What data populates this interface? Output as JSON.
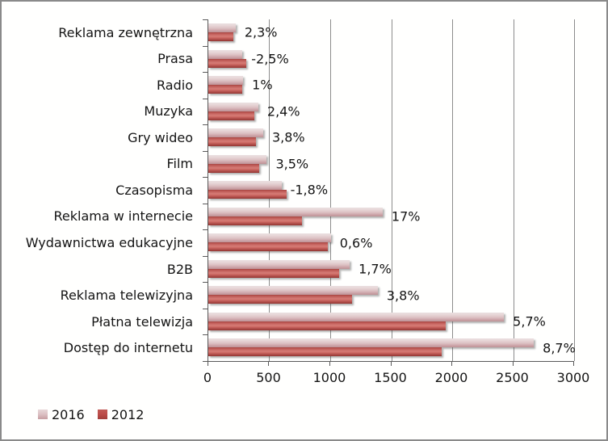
{
  "chart_data": {
    "type": "bar",
    "orientation": "horizontal",
    "title": "",
    "categories": [
      "Reklama zewnętrzna",
      "Prasa",
      "Radio",
      "Muzyka",
      "Gry wideo",
      "Film",
      "Czasopisma",
      "Reklama w internecie",
      "Wydawnictwa edukacyjne",
      "B2B",
      "Reklama telewizyjna",
      "Płatna telewizja",
      "Dostęp do internetu"
    ],
    "series": [
      {
        "name": "2016",
        "values": [
          224,
          280,
          286,
          410,
          450,
          480,
          600,
          1430,
          1005,
          1160,
          1390,
          2425,
          2670
        ]
      },
      {
        "name": "2012",
        "values": [
          205,
          310,
          275,
          375,
          390,
          420,
          645,
          765,
          980,
          1070,
          1180,
          1950,
          1915
        ]
      }
    ],
    "bar_labels": [
      "2,3%",
      "-2,5%",
      "1%",
      "2,4%",
      "3,8%",
      "3,5%",
      "-1,8%",
      "17%",
      "0,6%",
      "1,7%",
      "3,8%",
      "5,7%",
      "8,7%"
    ],
    "xlim": [
      0,
      3000
    ],
    "xticks": [
      0,
      500,
      1000,
      1500,
      2000,
      2500,
      3000
    ],
    "xtick_labels": [
      "0",
      "500",
      "1000",
      "1500",
      "2000",
      "2500",
      "3000"
    ],
    "grid": "vertical-major",
    "legend": {
      "position": "bottom-left",
      "entries": [
        "2016",
        "2012"
      ]
    }
  },
  "colors": {
    "series_2016": "#D9B2B4",
    "series_2012": "#BE4B48",
    "bar_2016_gradient": [
      "#EBDFDF",
      "#DCC0C3",
      "#BD9296"
    ],
    "bar_2012_gradient": [
      "#A84643",
      "#D67C76",
      "#943632"
    ],
    "gridline": "#8C8C8C",
    "axis": "#595959",
    "text": "#141414",
    "background": "#FFFFFE",
    "border": "#8A8A8A"
  }
}
